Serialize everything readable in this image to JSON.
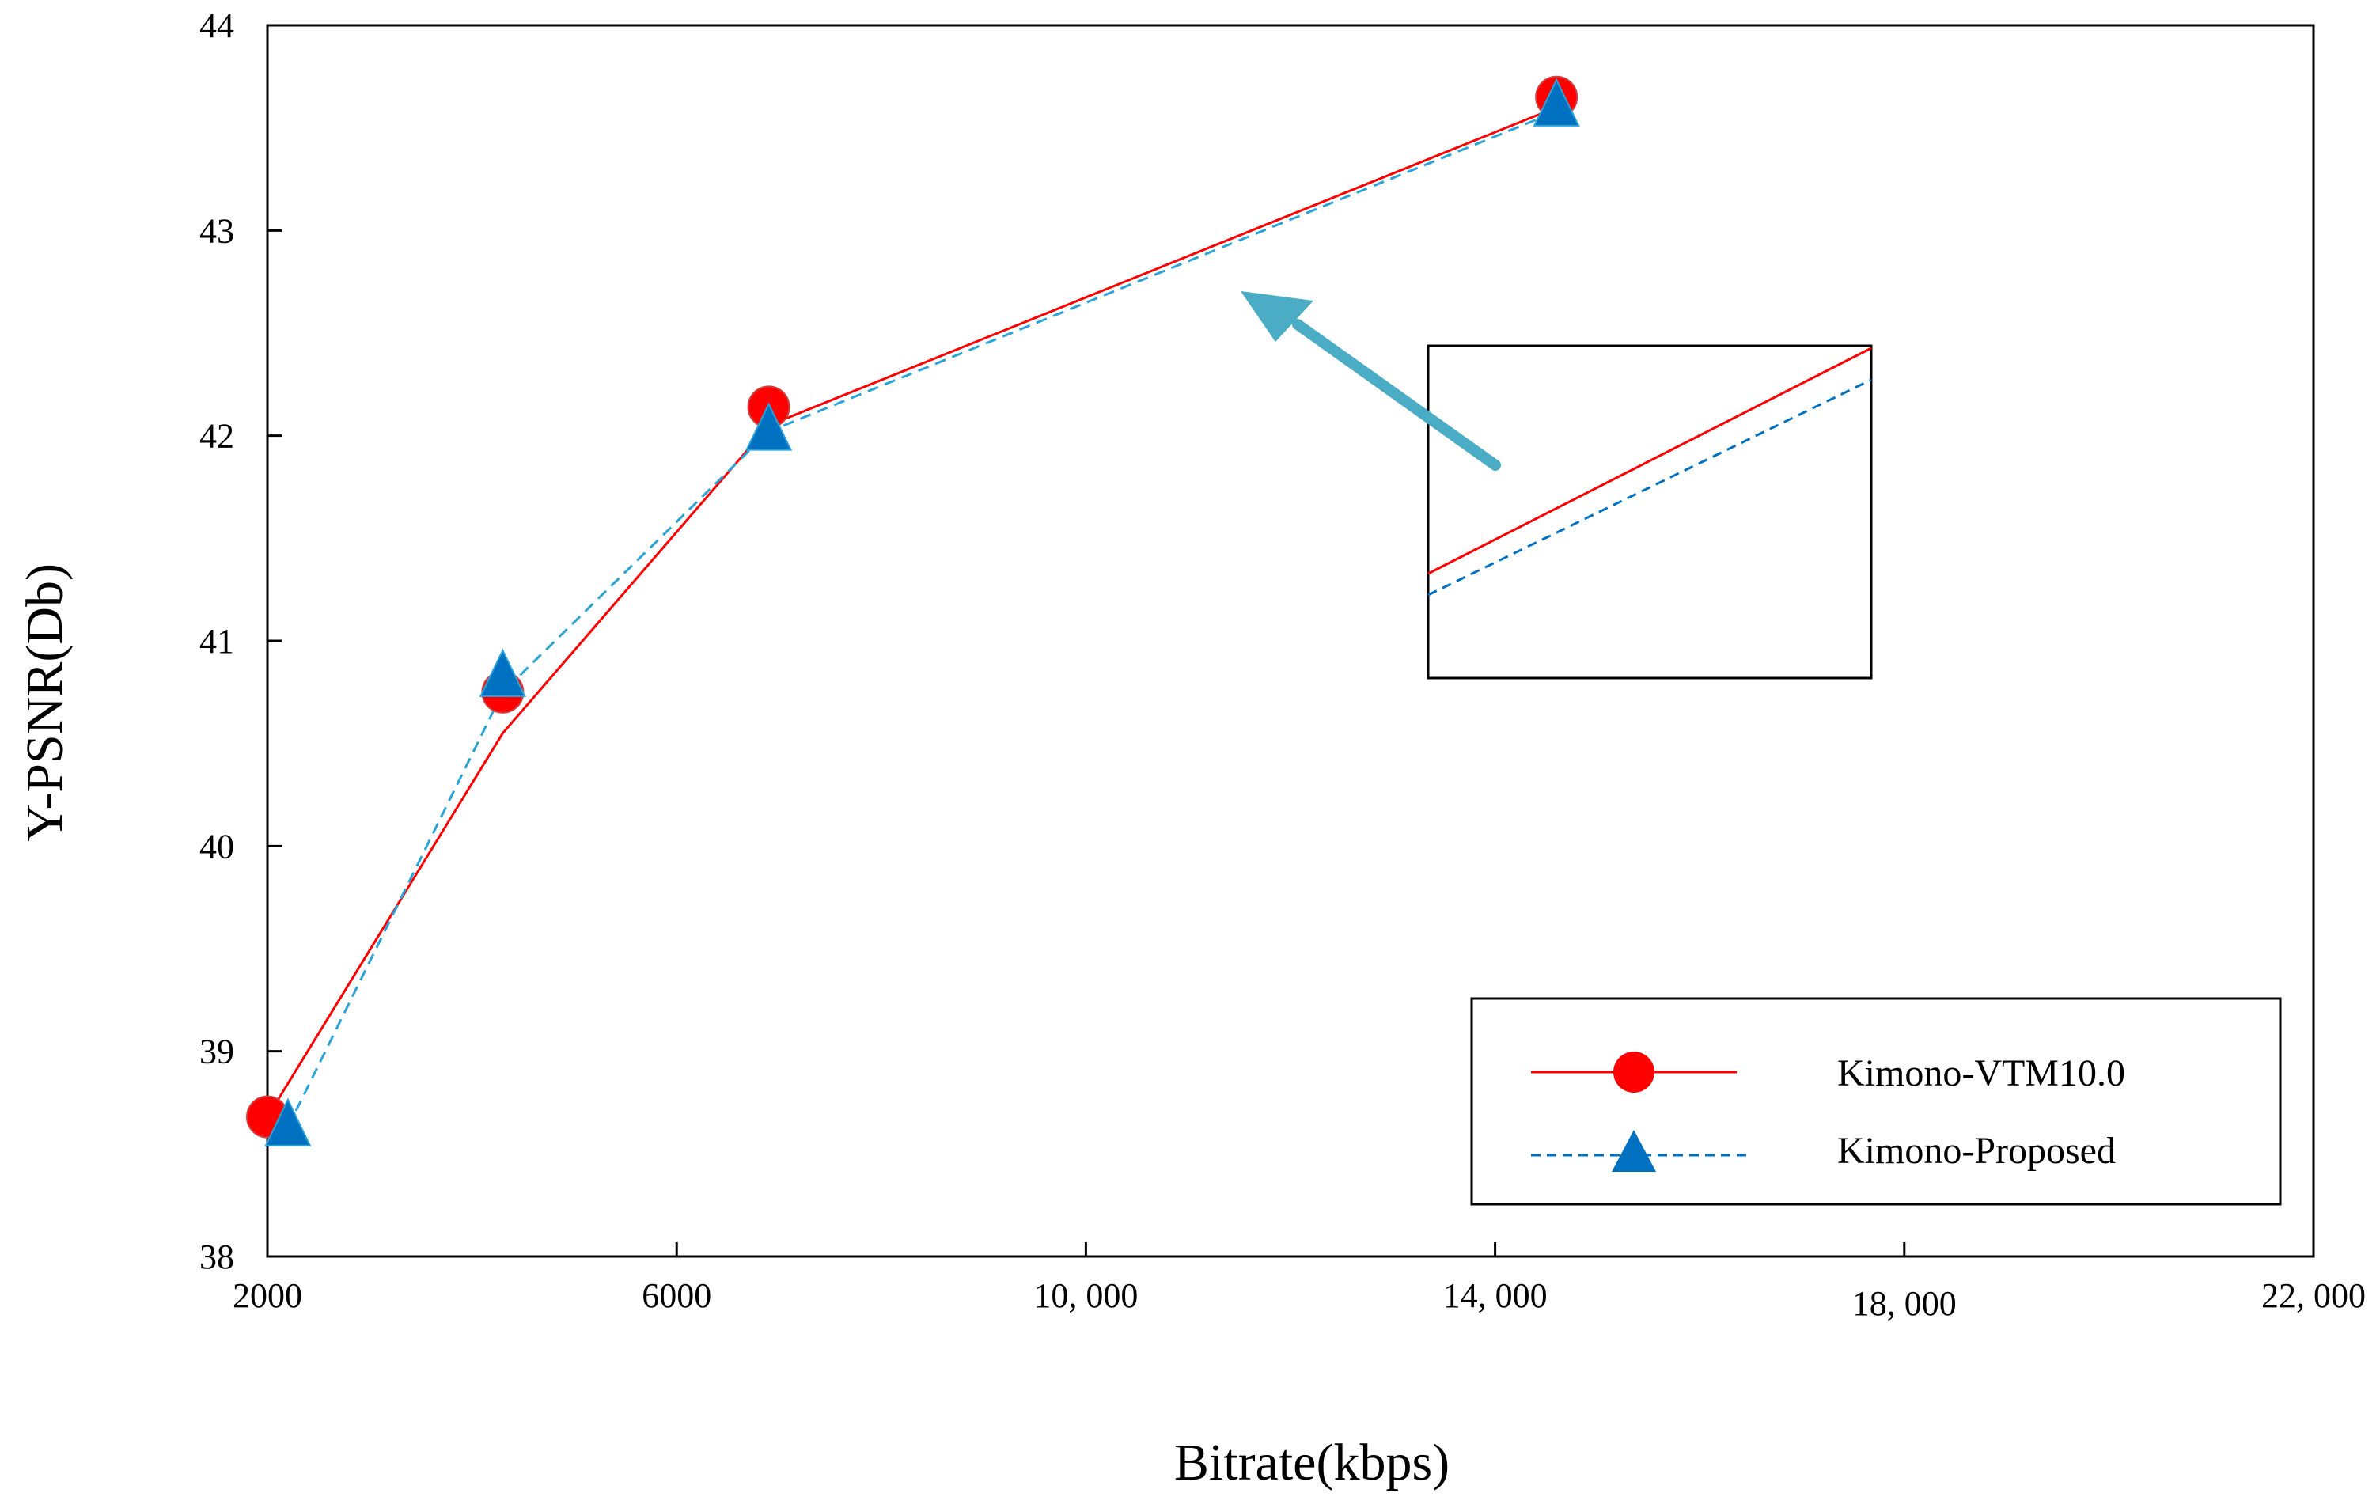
{
  "chart_data": {
    "type": "line",
    "title": "",
    "xlabel": "Bitrate(kbps)",
    "ylabel": "Y-PSNR(Db)",
    "xlim": [
      2000,
      22000
    ],
    "ylim": [
      38,
      44
    ],
    "x_ticks": [
      2000,
      6000,
      10000,
      14000,
      18000,
      22000
    ],
    "x_tick_labels": [
      "2000",
      "6000",
      "10, 000",
      "14, 000",
      "18, 000",
      "22, 000"
    ],
    "y_ticks": [
      38,
      39,
      40,
      41,
      42,
      43,
      44
    ],
    "y_tick_labels": [
      "38",
      "39",
      "40",
      "41",
      "42",
      "43",
      "44"
    ],
    "grid": false,
    "legend_position": "bottom-right",
    "series": [
      {
        "name": "Kimono-VTM10.0",
        "color": "#ff0000",
        "line_style": "solid",
        "marker": "circle",
        "points": [
          {
            "x": 2000,
            "y": 38.68
          },
          {
            "x": 4300,
            "y": 40.75
          },
          {
            "x": 6900,
            "y": 42.14
          },
          {
            "x": 14600,
            "y": 43.65
          }
        ],
        "line": [
          {
            "x": 2000,
            "y": 38.68
          },
          {
            "x": 4300,
            "y": 40.55
          },
          {
            "x": 6900,
            "y": 42.05
          },
          {
            "x": 14600,
            "y": 43.6
          }
        ]
      },
      {
        "name": "Kimono-Proposed",
        "color": "#0070c0",
        "line_color": "#29a3d9",
        "line_style": "dashed",
        "marker": "triangle",
        "points": [
          {
            "x": 2200,
            "y": 38.63
          },
          {
            "x": 4300,
            "y": 40.82
          },
          {
            "x": 6900,
            "y": 42.02
          },
          {
            "x": 14600,
            "y": 43.6
          }
        ],
        "line": [
          {
            "x": 2200,
            "y": 38.63
          },
          {
            "x": 4300,
            "y": 40.75
          },
          {
            "x": 6900,
            "y": 42.02
          },
          {
            "x": 14600,
            "y": 43.58
          }
        ]
      }
    ],
    "annotations": [
      {
        "type": "zoom-inset",
        "description_color": "#000000"
      },
      {
        "type": "arrow",
        "color": "#4bacc6"
      }
    ]
  }
}
